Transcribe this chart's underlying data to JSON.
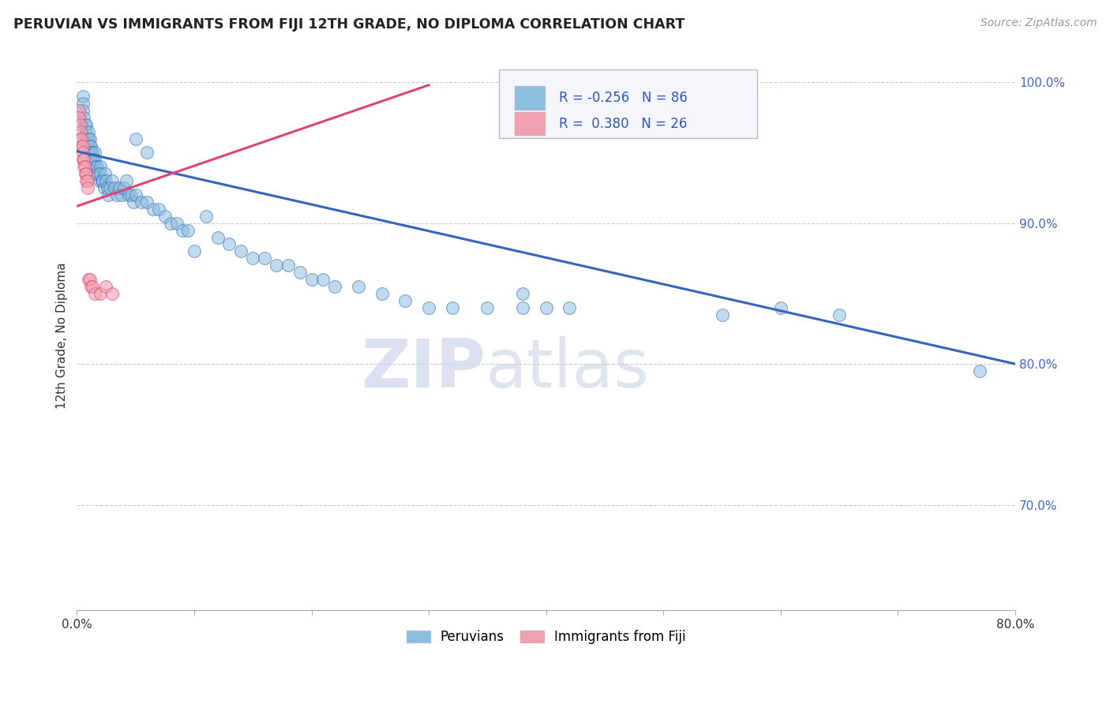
{
  "title": "PERUVIAN VS IMMIGRANTS FROM FIJI 12TH GRADE, NO DIPLOMA CORRELATION CHART",
  "source": "Source: ZipAtlas.com",
  "ylabel": "12th Grade, No Diploma",
  "x_min": 0.0,
  "x_max": 0.8,
  "y_min": 0.625,
  "y_max": 1.015,
  "y_ticks": [
    0.7,
    0.8,
    0.9,
    1.0
  ],
  "y_tick_labels": [
    "70.0%",
    "80.0%",
    "90.0%",
    "100.0%"
  ],
  "x_tick_positions": [
    0.0,
    0.1,
    0.2,
    0.3,
    0.4,
    0.5,
    0.6,
    0.7,
    0.8
  ],
  "x_tick_labels": [
    "0.0%",
    "",
    "",
    "",
    "",
    "",
    "",
    "",
    "80.0%"
  ],
  "blue_color": "#8bbfdd",
  "pink_color": "#f0a0b0",
  "blue_fill_color": "#aaccee",
  "pink_fill_color": "#f8c0c8",
  "blue_line_color": "#3366bb",
  "pink_line_color": "#dd4477",
  "grid_color": "#cccccc",
  "legend_R_blue": "-0.256",
  "legend_N_blue": "86",
  "legend_R_pink": "0.380",
  "legend_N_pink": "26",
  "blue_trend_x": [
    0.0,
    0.8
  ],
  "blue_trend_y": [
    0.951,
    0.8
  ],
  "pink_trend_x": [
    0.0,
    0.3
  ],
  "pink_trend_y": [
    0.912,
    0.998
  ],
  "blue_scatter_x": [
    0.005,
    0.005,
    0.005,
    0.006,
    0.007,
    0.008,
    0.008,
    0.009,
    0.009,
    0.01,
    0.01,
    0.01,
    0.011,
    0.011,
    0.012,
    0.012,
    0.013,
    0.013,
    0.014,
    0.014,
    0.015,
    0.015,
    0.016,
    0.016,
    0.017,
    0.018,
    0.019,
    0.02,
    0.02,
    0.021,
    0.022,
    0.023,
    0.024,
    0.025,
    0.026,
    0.027,
    0.028,
    0.03,
    0.032,
    0.034,
    0.036,
    0.038,
    0.04,
    0.042,
    0.044,
    0.046,
    0.048,
    0.05,
    0.055,
    0.06,
    0.065,
    0.07,
    0.075,
    0.08,
    0.085,
    0.09,
    0.095,
    0.1,
    0.11,
    0.12,
    0.13,
    0.14,
    0.15,
    0.16,
    0.17,
    0.18,
    0.19,
    0.2,
    0.21,
    0.22,
    0.24,
    0.26,
    0.28,
    0.3,
    0.32,
    0.35,
    0.38,
    0.05,
    0.06,
    0.38,
    0.4,
    0.42,
    0.55,
    0.6,
    0.65,
    0.77
  ],
  "blue_scatter_y": [
    0.99,
    0.985,
    0.98,
    0.975,
    0.97,
    0.97,
    0.965,
    0.96,
    0.955,
    0.965,
    0.96,
    0.955,
    0.96,
    0.955,
    0.955,
    0.95,
    0.95,
    0.945,
    0.945,
    0.94,
    0.95,
    0.945,
    0.94,
    0.935,
    0.94,
    0.935,
    0.93,
    0.94,
    0.935,
    0.93,
    0.93,
    0.925,
    0.935,
    0.93,
    0.925,
    0.92,
    0.925,
    0.93,
    0.925,
    0.92,
    0.925,
    0.92,
    0.925,
    0.93,
    0.92,
    0.92,
    0.915,
    0.92,
    0.915,
    0.915,
    0.91,
    0.91,
    0.905,
    0.9,
    0.9,
    0.895,
    0.895,
    0.88,
    0.905,
    0.89,
    0.885,
    0.88,
    0.875,
    0.875,
    0.87,
    0.87,
    0.865,
    0.86,
    0.86,
    0.855,
    0.855,
    0.85,
    0.845,
    0.84,
    0.84,
    0.84,
    0.84,
    0.96,
    0.95,
    0.85,
    0.84,
    0.84,
    0.835,
    0.84,
    0.835,
    0.795
  ],
  "pink_scatter_x": [
    0.002,
    0.002,
    0.003,
    0.003,
    0.003,
    0.004,
    0.004,
    0.005,
    0.005,
    0.005,
    0.006,
    0.006,
    0.007,
    0.007,
    0.008,
    0.008,
    0.009,
    0.009,
    0.01,
    0.011,
    0.012,
    0.013,
    0.015,
    0.02,
    0.025,
    0.03
  ],
  "pink_scatter_y": [
    0.98,
    0.975,
    0.97,
    0.965,
    0.96,
    0.96,
    0.955,
    0.955,
    0.95,
    0.945,
    0.945,
    0.94,
    0.94,
    0.935,
    0.935,
    0.93,
    0.93,
    0.925,
    0.86,
    0.86,
    0.855,
    0.855,
    0.85,
    0.85,
    0.855,
    0.85
  ]
}
